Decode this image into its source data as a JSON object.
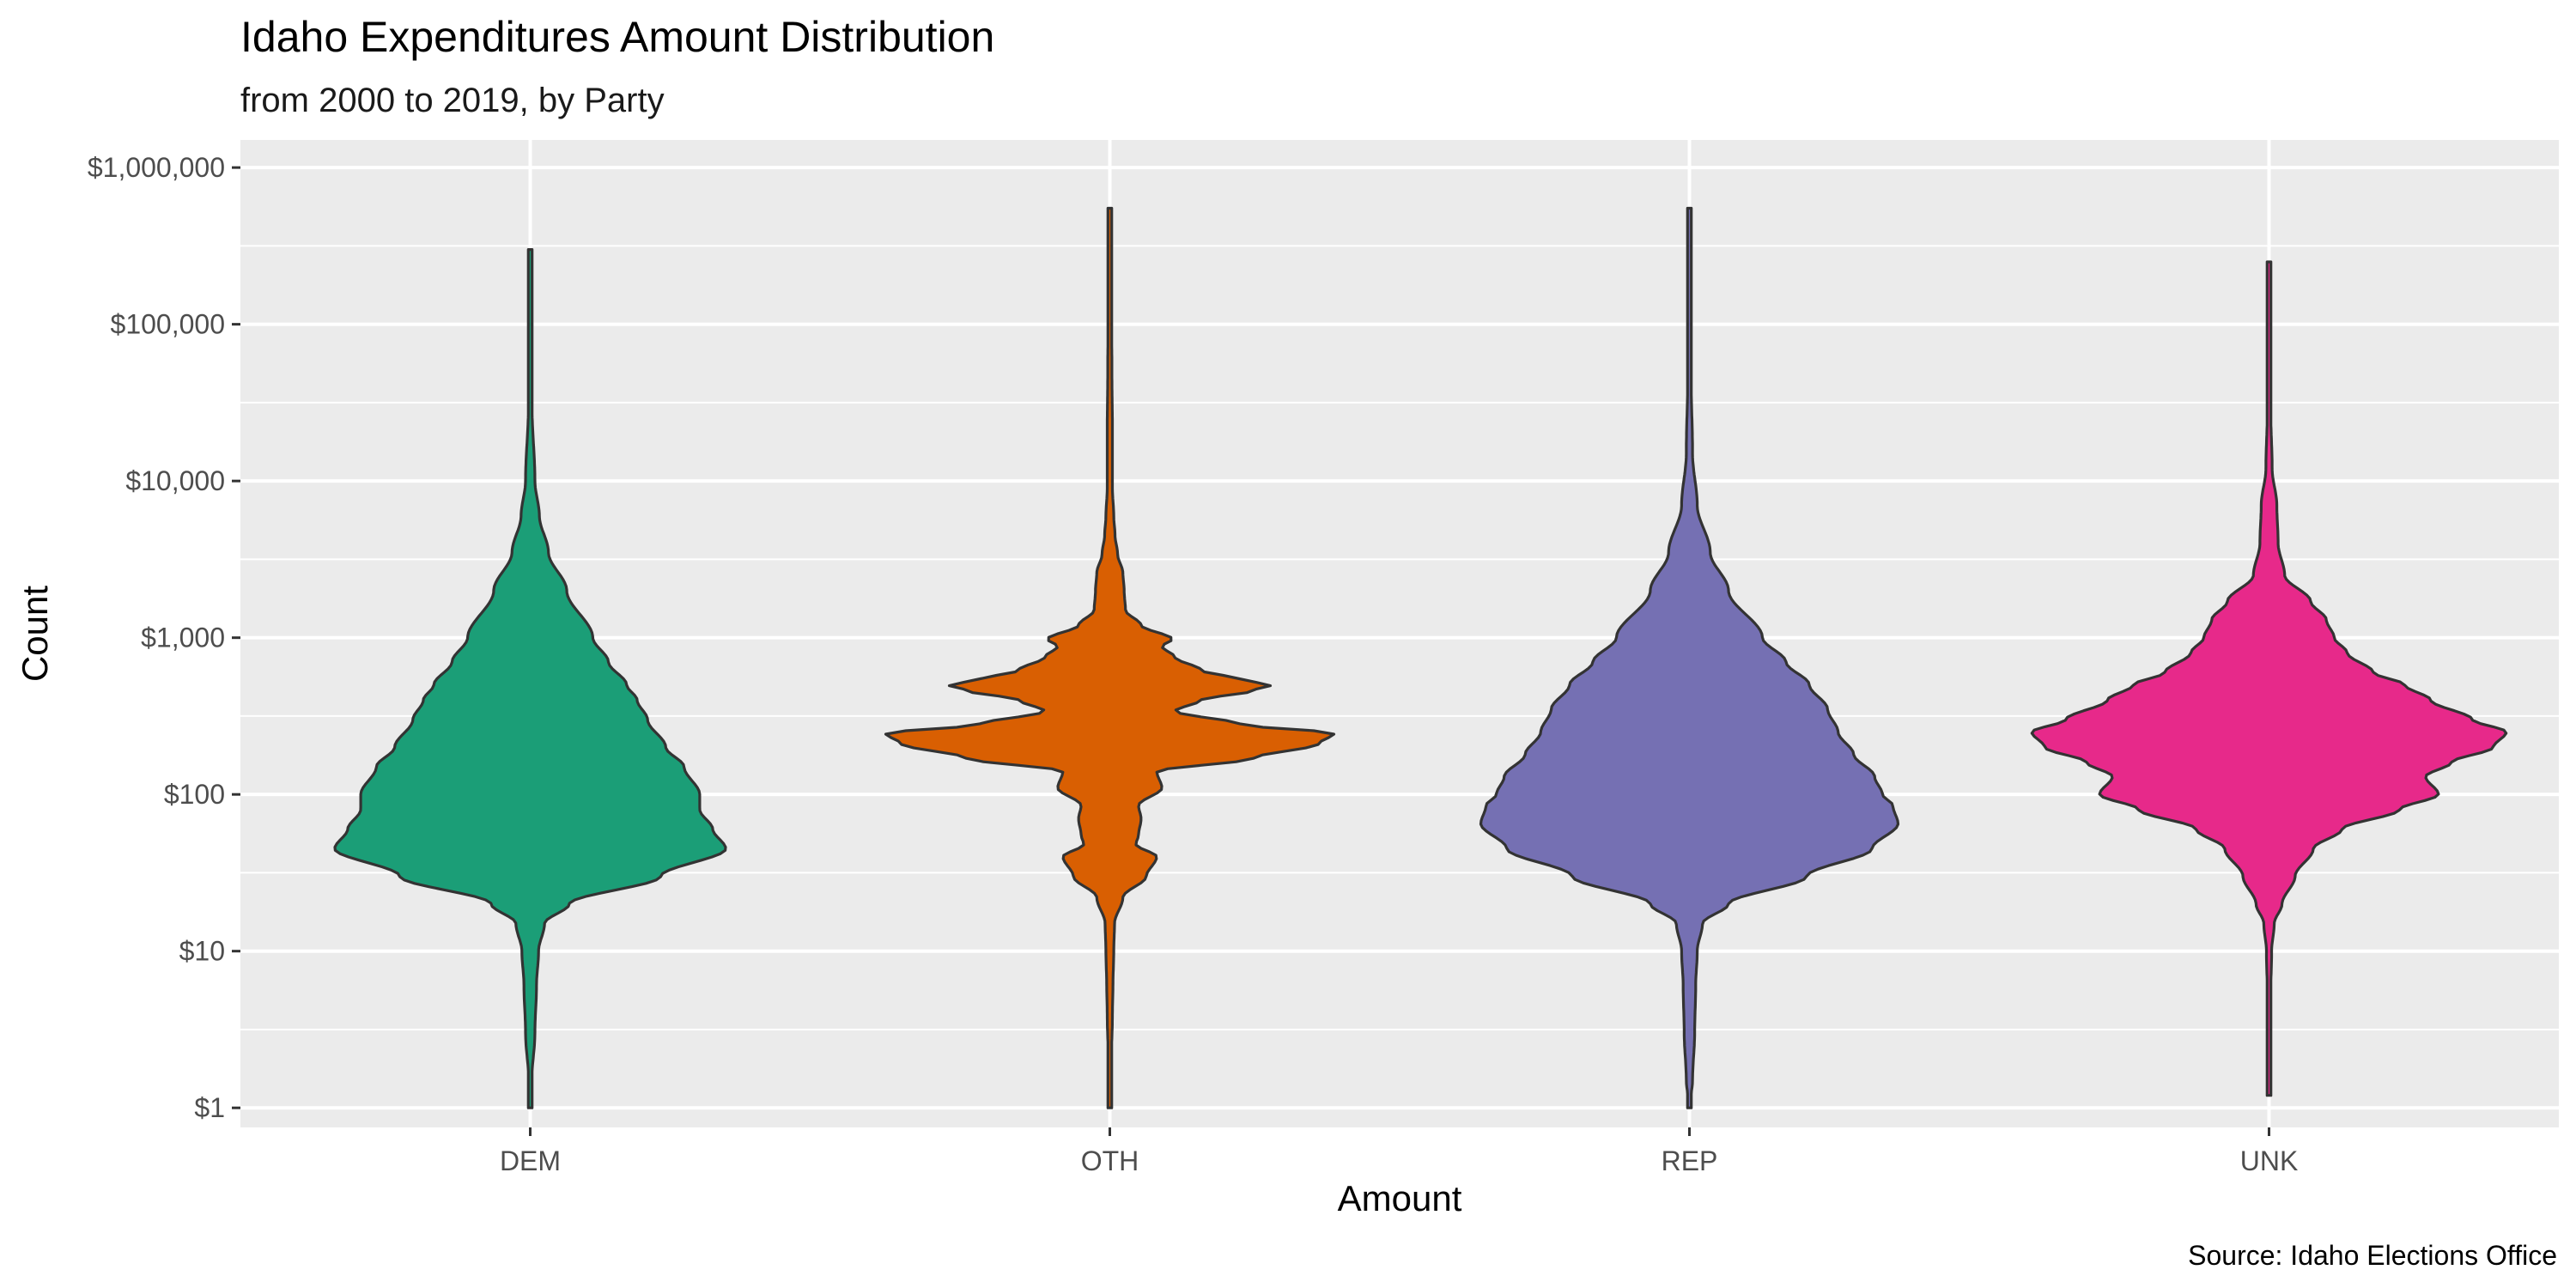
{
  "chart_data": {
    "type": "violin",
    "title": "Idaho Expenditures Amount Distribution",
    "subtitle": "from 2000 to 2019, by Party",
    "xlabel": "Amount",
    "ylabel": "Count",
    "caption": "Source: Idaho Elections Office",
    "y_scale": "log10",
    "ylim": [
      0.75,
      1500000
    ],
    "y_ticks": [
      {
        "value": 1,
        "label": "$1"
      },
      {
        "value": 10,
        "label": "$10"
      },
      {
        "value": 100,
        "label": "$100"
      },
      {
        "value": 1000,
        "label": "$1,000"
      },
      {
        "value": 10000,
        "label": "$10,000"
      },
      {
        "value": 100000,
        "label": "$100,000"
      },
      {
        "value": 1000000,
        "label": "$1,000,000"
      }
    ],
    "categories": [
      "DEM",
      "OTH",
      "REP",
      "UNK"
    ],
    "grid": true,
    "legend": "none",
    "series": [
      {
        "category": "DEM",
        "color": "#1B9E77",
        "min": 1,
        "max": 300000,
        "density": [
          [
            1,
            0.0
          ],
          [
            1.5,
            0.006
          ],
          [
            3,
            0.018
          ],
          [
            6,
            0.024
          ],
          [
            10,
            0.032
          ],
          [
            15,
            0.055
          ],
          [
            20,
            0.15
          ],
          [
            30,
            0.5
          ],
          [
            45,
            0.75
          ],
          [
            60,
            0.7
          ],
          [
            80,
            0.65
          ],
          [
            100,
            0.65
          ],
          [
            150,
            0.59
          ],
          [
            200,
            0.52
          ],
          [
            300,
            0.45
          ],
          [
            400,
            0.41
          ],
          [
            500,
            0.37
          ],
          [
            700,
            0.3
          ],
          [
            1000,
            0.24
          ],
          [
            2000,
            0.14
          ],
          [
            3500,
            0.07
          ],
          [
            6000,
            0.035
          ],
          [
            10000,
            0.018
          ],
          [
            30000,
            0.007
          ],
          [
            100000,
            0.004
          ],
          [
            300000,
            0.0
          ]
        ]
      },
      {
        "category": "OTH",
        "color": "#D95F02",
        "min": 1,
        "max": 550000,
        "density": [
          [
            1,
            0.0
          ],
          [
            2,
            0.006
          ],
          [
            4,
            0.01
          ],
          [
            6,
            0.012
          ],
          [
            10,
            0.015
          ],
          [
            15,
            0.018
          ],
          [
            22,
            0.05
          ],
          [
            30,
            0.14
          ],
          [
            40,
            0.18
          ],
          [
            48,
            0.1
          ],
          [
            55,
            0.11
          ],
          [
            70,
            0.12
          ],
          [
            85,
            0.11
          ],
          [
            110,
            0.2
          ],
          [
            140,
            0.18
          ],
          [
            170,
            0.55
          ],
          [
            210,
            0.8
          ],
          [
            245,
            0.86
          ],
          [
            280,
            0.5
          ],
          [
            340,
            0.25
          ],
          [
            400,
            0.35
          ],
          [
            460,
            0.55
          ],
          [
            500,
            0.62
          ],
          [
            540,
            0.5
          ],
          [
            620,
            0.35
          ],
          [
            750,
            0.25
          ],
          [
            880,
            0.2
          ],
          [
            980,
            0.24
          ],
          [
            1200,
            0.12
          ],
          [
            1500,
            0.06
          ],
          [
            2000,
            0.055
          ],
          [
            2600,
            0.05
          ],
          [
            3400,
            0.03
          ],
          [
            4500,
            0.02
          ],
          [
            6000,
            0.015
          ],
          [
            9000,
            0.01
          ],
          [
            20000,
            0.01
          ],
          [
            50000,
            0.008
          ],
          [
            200000,
            0.004
          ],
          [
            550000,
            0.0
          ]
        ]
      },
      {
        "category": "REP",
        "color": "#7570B3",
        "min": 1,
        "max": 550000,
        "density": [
          [
            1,
            0.0
          ],
          [
            1.5,
            0.012
          ],
          [
            3,
            0.02
          ],
          [
            6,
            0.024
          ],
          [
            10,
            0.03
          ],
          [
            15,
            0.05
          ],
          [
            20,
            0.15
          ],
          [
            30,
            0.45
          ],
          [
            45,
            0.7
          ],
          [
            65,
            0.8
          ],
          [
            85,
            0.78
          ],
          [
            100,
            0.74
          ],
          [
            130,
            0.71
          ],
          [
            180,
            0.63
          ],
          [
            250,
            0.57
          ],
          [
            350,
            0.53
          ],
          [
            500,
            0.46
          ],
          [
            700,
            0.37
          ],
          [
            1000,
            0.28
          ],
          [
            2000,
            0.15
          ],
          [
            3500,
            0.08
          ],
          [
            7000,
            0.03
          ],
          [
            15000,
            0.012
          ],
          [
            50000,
            0.006
          ],
          [
            200000,
            0.003
          ],
          [
            550000,
            0.0
          ]
        ]
      },
      {
        "category": "UNK",
        "color": "#E7298A",
        "min": 1.2,
        "max": 250000,
        "density": [
          [
            1.2,
            0.0
          ],
          [
            2,
            0.003
          ],
          [
            5,
            0.006
          ],
          [
            10,
            0.01
          ],
          [
            15,
            0.02
          ],
          [
            20,
            0.05
          ],
          [
            30,
            0.1
          ],
          [
            45,
            0.17
          ],
          [
            60,
            0.28
          ],
          [
            80,
            0.5
          ],
          [
            100,
            0.65
          ],
          [
            130,
            0.6
          ],
          [
            160,
            0.7
          ],
          [
            200,
            0.86
          ],
          [
            250,
            0.91
          ],
          [
            300,
            0.78
          ],
          [
            400,
            0.62
          ],
          [
            500,
            0.52
          ],
          [
            600,
            0.4
          ],
          [
            800,
            0.3
          ],
          [
            1000,
            0.25
          ],
          [
            1300,
            0.22
          ],
          [
            1700,
            0.16
          ],
          [
            2500,
            0.06
          ],
          [
            4000,
            0.035
          ],
          [
            7000,
            0.03
          ],
          [
            12000,
            0.012
          ],
          [
            30000,
            0.006
          ],
          [
            100000,
            0.003
          ],
          [
            250000,
            0.0
          ]
        ]
      }
    ]
  }
}
